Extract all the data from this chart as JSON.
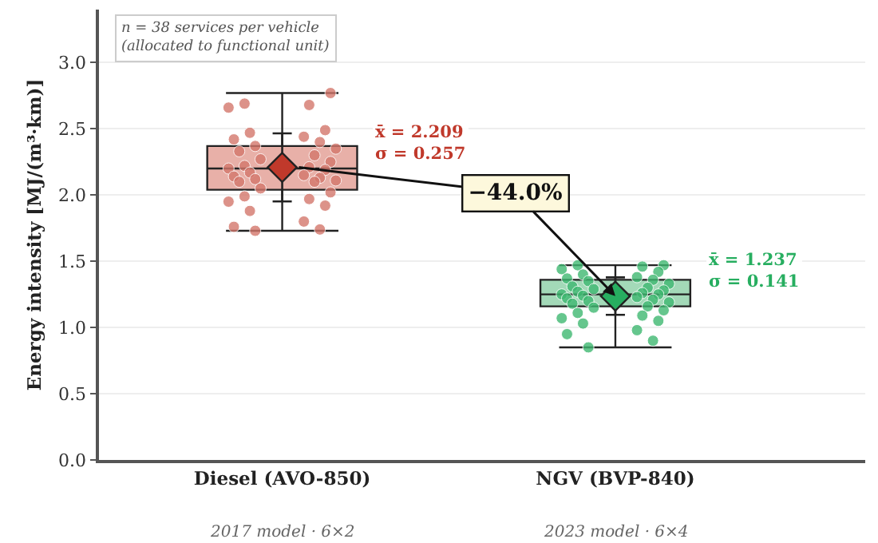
{
  "chart_data": {
    "type": "box",
    "ylabel": "Energy intensity [MJ/(m³·km)]",
    "categories": [
      "Diesel (AVO-850)",
      "NGV (BVP-840)"
    ],
    "ylim": [
      0,
      3.4
    ],
    "yticks": [
      {
        "value": 0,
        "label": "0.0"
      },
      {
        "value": 0.5,
        "label": "0.5"
      },
      {
        "value": 1,
        "label": "1.0"
      },
      {
        "value": 1.5,
        "label": "1.5"
      },
      {
        "value": 2,
        "label": "2.0"
      },
      {
        "value": 2.5,
        "label": "2.5"
      },
      {
        "value": 3,
        "label": "3.0"
      }
    ],
    "grid": "y",
    "series": [
      {
        "colors": [
          "#e8b0a8",
          "#a3d9b8"
        ],
        "boxes": [
          {
            "low": 1.73,
            "q1": 2.04,
            "median": 2.2,
            "q3": 2.37,
            "high": 2.77
          },
          {
            "low": 0.85,
            "q1": 1.16,
            "median": 1.25,
            "q3": 1.36,
            "high": 1.47
          }
        ]
      },
      {
        "type": "scatter",
        "marker": "circle",
        "color": "#d4776c",
        "x": [
          "Diesel (AVO-850)",
          "Diesel (AVO-850)",
          "Diesel (AVO-850)",
          "Diesel (AVO-850)",
          "Diesel (AVO-850)",
          "Diesel (AVO-850)",
          "Diesel (AVO-850)",
          "Diesel (AVO-850)",
          "Diesel (AVO-850)",
          "Diesel (AVO-850)",
          "Diesel (AVO-850)",
          "Diesel (AVO-850)",
          "Diesel (AVO-850)",
          "Diesel (AVO-850)",
          "Diesel (AVO-850)",
          "Diesel (AVO-850)",
          "Diesel (AVO-850)",
          "Diesel (AVO-850)",
          "Diesel (AVO-850)",
          "Diesel (AVO-850)",
          "Diesel (AVO-850)",
          "Diesel (AVO-850)",
          "Diesel (AVO-850)",
          "Diesel (AVO-850)",
          "Diesel (AVO-850)",
          "Diesel (AVO-850)",
          "Diesel (AVO-850)",
          "Diesel (AVO-850)",
          "Diesel (AVO-850)",
          "Diesel (AVO-850)",
          "Diesel (AVO-850)",
          "Diesel (AVO-850)",
          "Diesel (AVO-850)",
          "Diesel (AVO-850)",
          "Diesel (AVO-850)",
          "Diesel (AVO-850)",
          "Diesel (AVO-850)",
          "Diesel (AVO-850)"
        ],
        "values": [
          2.77,
          2.69,
          2.68,
          2.66,
          2.49,
          2.47,
          2.44,
          2.42,
          2.4,
          2.37,
          2.35,
          2.33,
          2.3,
          2.27,
          2.25,
          2.22,
          2.21,
          2.2,
          2.19,
          2.17,
          2.15,
          2.14,
          2.13,
          2.12,
          2.11,
          2.1,
          2.1,
          2.05,
          2.02,
          1.99,
          1.97,
          1.95,
          1.92,
          1.88,
          1.8,
          1.76,
          1.74,
          1.73
        ]
      },
      {
        "type": "scatter",
        "marker": "circle",
        "color": "#3fb871",
        "x": [
          "NGV (BVP-840)",
          "NGV (BVP-840)",
          "NGV (BVP-840)",
          "NGV (BVP-840)",
          "NGV (BVP-840)",
          "NGV (BVP-840)",
          "NGV (BVP-840)",
          "NGV (BVP-840)",
          "NGV (BVP-840)",
          "NGV (BVP-840)",
          "NGV (BVP-840)",
          "NGV (BVP-840)",
          "NGV (BVP-840)",
          "NGV (BVP-840)",
          "NGV (BVP-840)",
          "NGV (BVP-840)",
          "NGV (BVP-840)",
          "NGV (BVP-840)",
          "NGV (BVP-840)",
          "NGV (BVP-840)",
          "NGV (BVP-840)",
          "NGV (BVP-840)",
          "NGV (BVP-840)",
          "NGV (BVP-840)",
          "NGV (BVP-840)",
          "NGV (BVP-840)",
          "NGV (BVP-840)",
          "NGV (BVP-840)",
          "NGV (BVP-840)",
          "NGV (BVP-840)",
          "NGV (BVP-840)",
          "NGV (BVP-840)",
          "NGV (BVP-840)",
          "NGV (BVP-840)",
          "NGV (BVP-840)",
          "NGV (BVP-840)",
          "NGV (BVP-840)",
          "NGV (BVP-840)"
        ],
        "values": [
          1.47,
          1.47,
          1.46,
          1.44,
          1.42,
          1.4,
          1.38,
          1.37,
          1.36,
          1.35,
          1.33,
          1.31,
          1.3,
          1.29,
          1.28,
          1.27,
          1.26,
          1.25,
          1.25,
          1.24,
          1.23,
          1.22,
          1.21,
          1.2,
          1.19,
          1.18,
          1.16,
          1.15,
          1.13,
          1.11,
          1.09,
          1.07,
          1.05,
          1.03,
          0.98,
          0.95,
          0.9,
          0.85
        ]
      },
      {
        "type": "scatter",
        "marker": "diamond",
        "x": [
          "Diesel (AVO-850)",
          "NGV (BVP-840)"
        ],
        "values": [
          2.209,
          1.237
        ],
        "errors": [
          0.257,
          0.141
        ],
        "colors": [
          "#c0392b",
          "#27ae60"
        ]
      }
    ],
    "annotations": [
      "n = 38 services per vehicle\n(allocated to functional unit)",
      "2017 model · 6×2",
      "2023 model · 6×4",
      "x̄ = 2.209\nσ = 0.257",
      "x̄ = 1.237\nσ = 0.141",
      {
        "text": "−44.0%",
        "x": "NGV (BVP-840)",
        "y": 1.237
      }
    ]
  }
}
